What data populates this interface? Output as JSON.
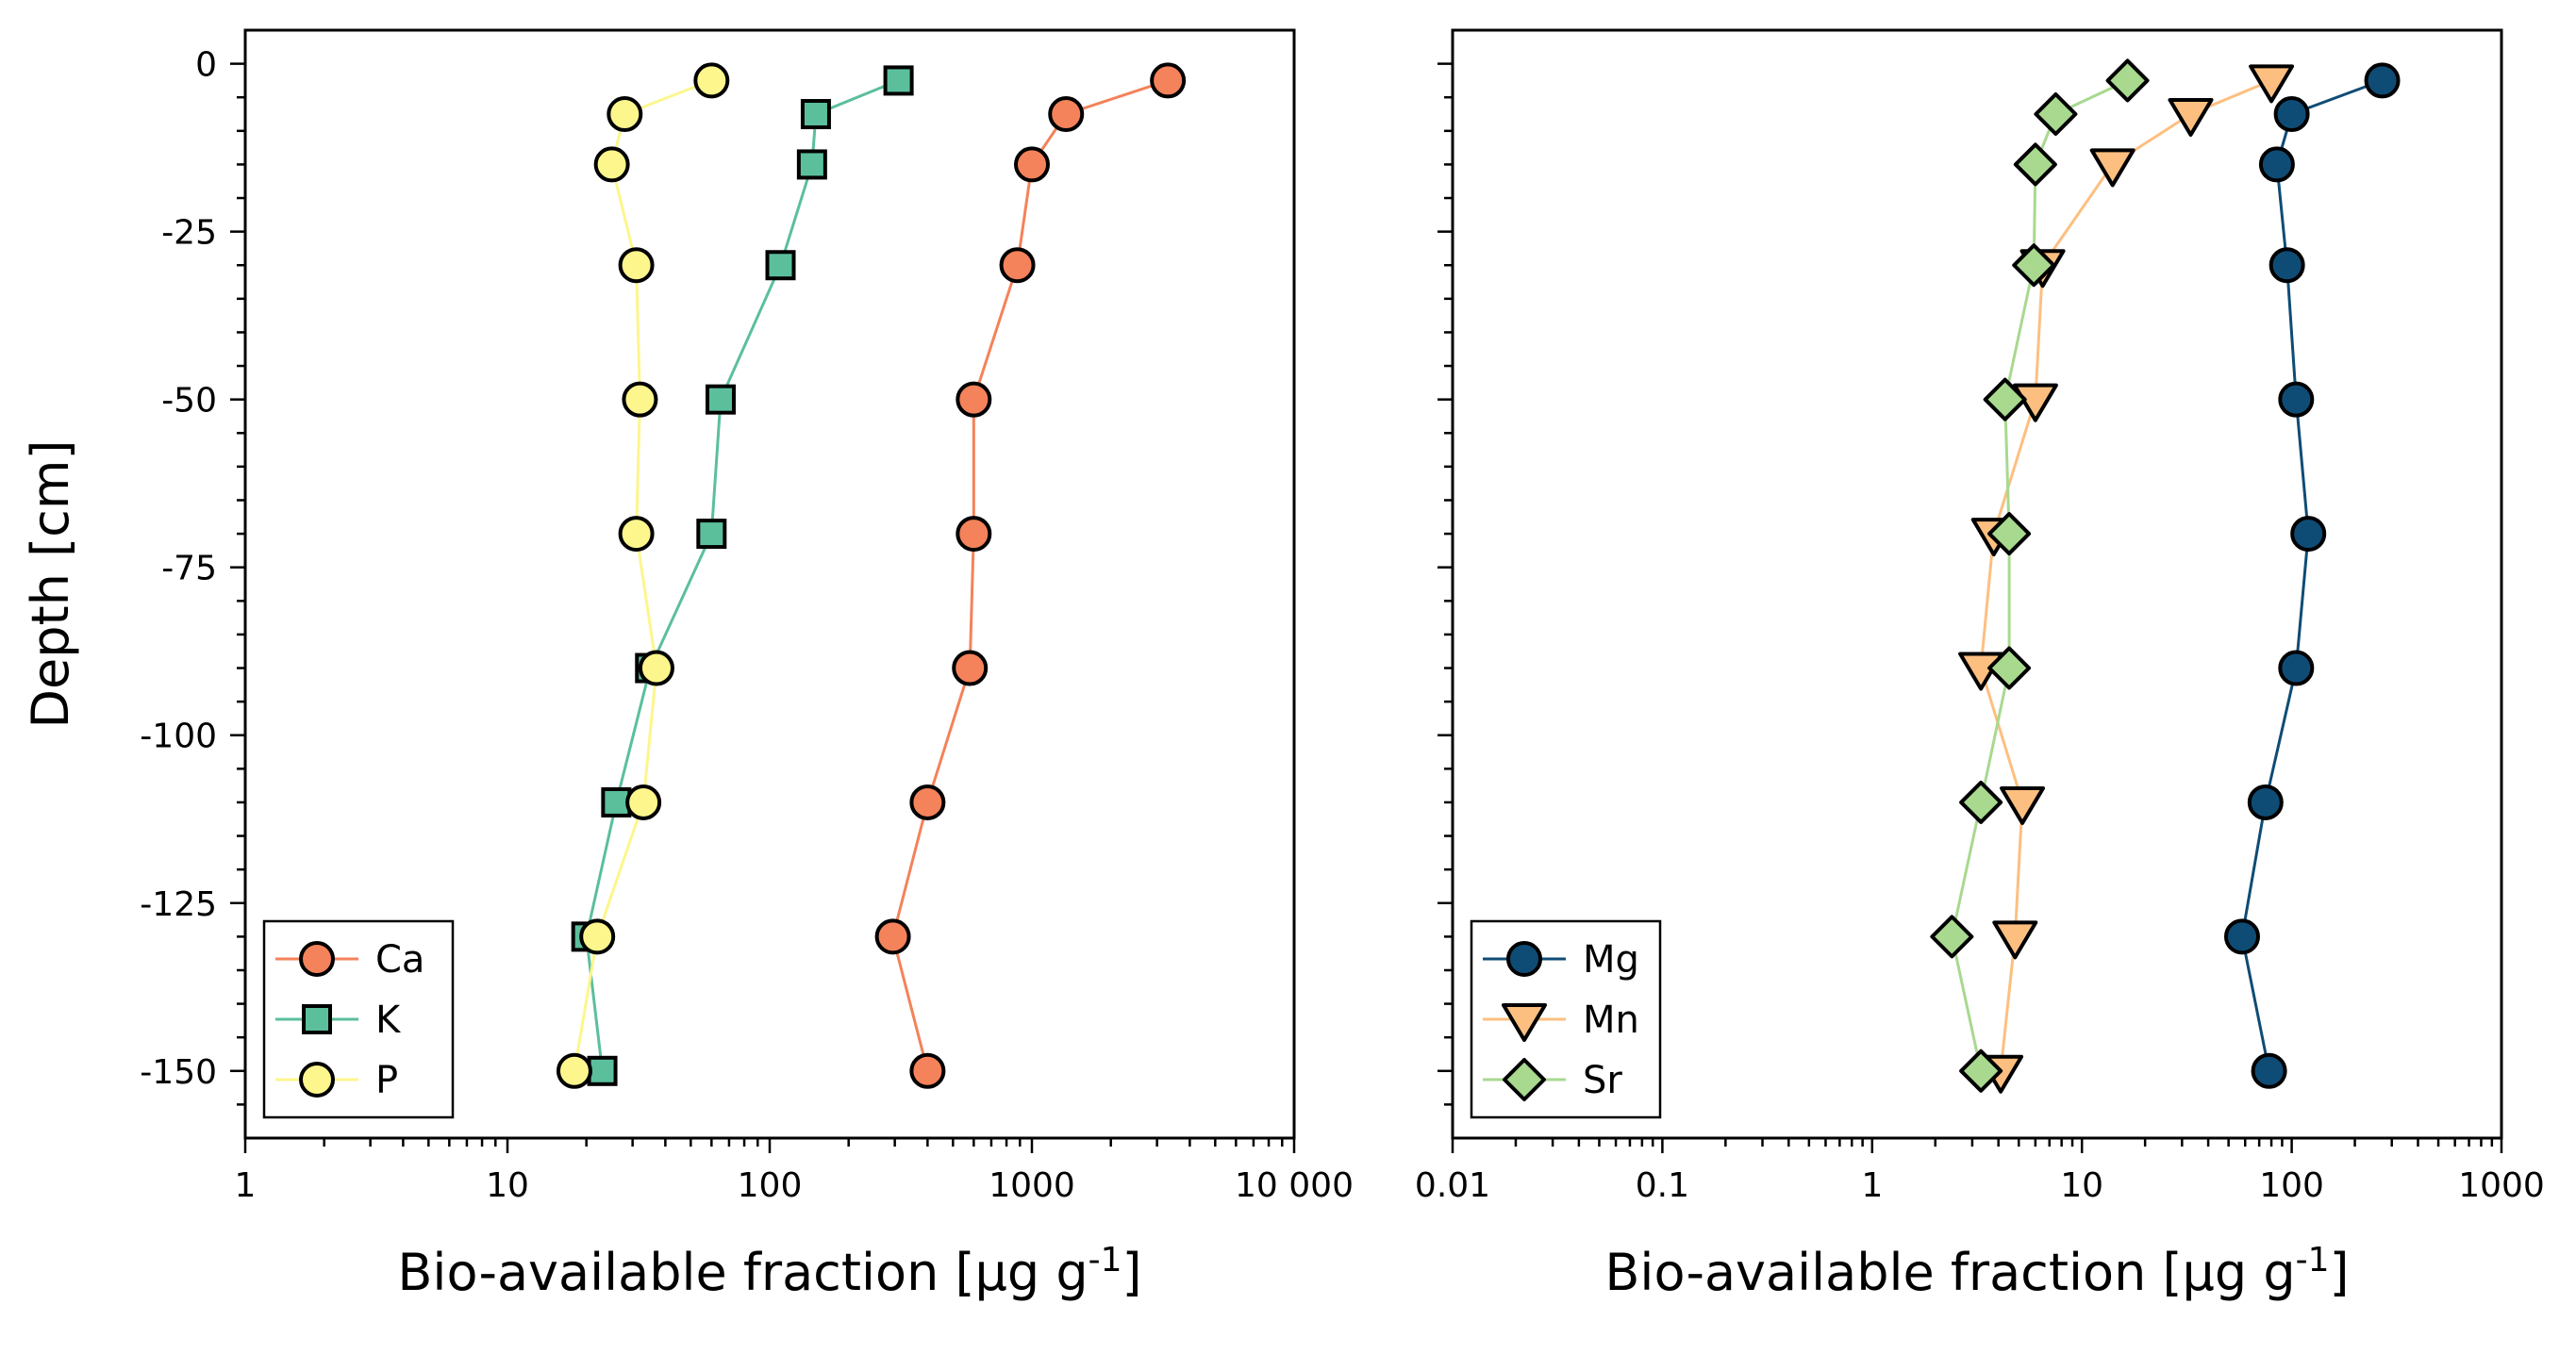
{
  "chart_data": [
    {
      "type": "line",
      "xlabel": "Bio-available fraction [µg g-1]",
      "ylabel": "Depth [cm]",
      "xscale": "log",
      "xlim": [
        1,
        10000
      ],
      "ylim": [
        -160,
        5
      ],
      "xticks": [
        1,
        10,
        100,
        1000,
        10000
      ],
      "xtick_labels": [
        "1",
        "10",
        "100",
        "1000",
        "10 000"
      ],
      "yticks": [
        0,
        -25,
        -50,
        -75,
        -100,
        -125,
        -150
      ],
      "ytick_labels": [
        "0",
        "-25",
        "-50",
        "-75",
        "-100",
        "-125",
        "-150"
      ],
      "legend_position": "lower-left",
      "series": [
        {
          "name": "Ca",
          "marker": "circle",
          "color": "#f4825a",
          "points": [
            [
              3300,
              -2.5
            ],
            [
              1350,
              -7.5
            ],
            [
              1000,
              -15
            ],
            [
              880,
              -30
            ],
            [
              600,
              -50
            ],
            [
              600,
              -70
            ],
            [
              580,
              -90
            ],
            [
              400,
              -110
            ],
            [
              295,
              -130
            ],
            [
              400,
              -150
            ]
          ]
        },
        {
          "name": "K",
          "marker": "square",
          "color": "#5bbf9c",
          "points": [
            [
              310,
              -2.5
            ],
            [
              150,
              -7.5
            ],
            [
              145,
              -15
            ],
            [
              110,
              -30
            ],
            [
              65,
              -50
            ],
            [
              60,
              -70
            ],
            [
              35,
              -90
            ],
            [
              26,
              -110
            ],
            [
              20,
              -130
            ],
            [
              23,
              -150
            ]
          ]
        },
        {
          "name": "P",
          "marker": "circle",
          "color": "#fdf68c",
          "points": [
            [
              60,
              -2.5
            ],
            [
              28,
              -7.5
            ],
            [
              25,
              -15
            ],
            [
              31,
              -30
            ],
            [
              32,
              -50
            ],
            [
              31,
              -70
            ],
            [
              37,
              -90
            ],
            [
              33,
              -110
            ],
            [
              22,
              -130
            ],
            [
              18,
              -150
            ]
          ]
        }
      ]
    },
    {
      "type": "line",
      "xlabel": "Bio-available fraction [µg g-1]",
      "ylabel": "",
      "xscale": "log",
      "xlim": [
        0.01,
        1000
      ],
      "ylim": [
        -160,
        5
      ],
      "xticks": [
        0.01,
        0.1,
        1,
        10,
        100,
        1000
      ],
      "xtick_labels": [
        "0.01",
        "0.1",
        "1",
        "10",
        "100",
        "1000"
      ],
      "yticks": [
        0,
        -25,
        -50,
        -75,
        -100,
        -125,
        -150
      ],
      "legend_position": "lower-left",
      "series": [
        {
          "name": "Mg",
          "marker": "circle",
          "color": "#0f4c75",
          "points": [
            [
              270,
              -2.5
            ],
            [
              100,
              -7.5
            ],
            [
              85,
              -15
            ],
            [
              95,
              -30
            ],
            [
              105,
              -50
            ],
            [
              120,
              -70
            ],
            [
              105,
              -90
            ],
            [
              75,
              -110
            ],
            [
              58,
              -130
            ],
            [
              78,
              -150
            ]
          ]
        },
        {
          "name": "Mn",
          "marker": "triangle-down",
          "color": "#fdbf80",
          "points": [
            [
              80,
              -2.5
            ],
            [
              33,
              -7.5
            ],
            [
              14,
              -15
            ],
            [
              6.5,
              -30
            ],
            [
              6,
              -50
            ],
            [
              3.8,
              -70
            ],
            [
              3.3,
              -90
            ],
            [
              5.2,
              -110
            ],
            [
              4.8,
              -130
            ],
            [
              4.1,
              -150
            ]
          ]
        },
        {
          "name": "Sr",
          "marker": "diamond",
          "color": "#a8d98f",
          "points": [
            [
              16.5,
              -2.5
            ],
            [
              7.5,
              -7.5
            ],
            [
              6,
              -15
            ],
            [
              5.9,
              -30
            ],
            [
              4.3,
              -50
            ],
            [
              4.5,
              -70
            ],
            [
              4.5,
              -90
            ],
            [
              3.3,
              -110
            ],
            [
              2.4,
              -130
            ],
            [
              3.3,
              -150
            ]
          ]
        }
      ]
    }
  ]
}
